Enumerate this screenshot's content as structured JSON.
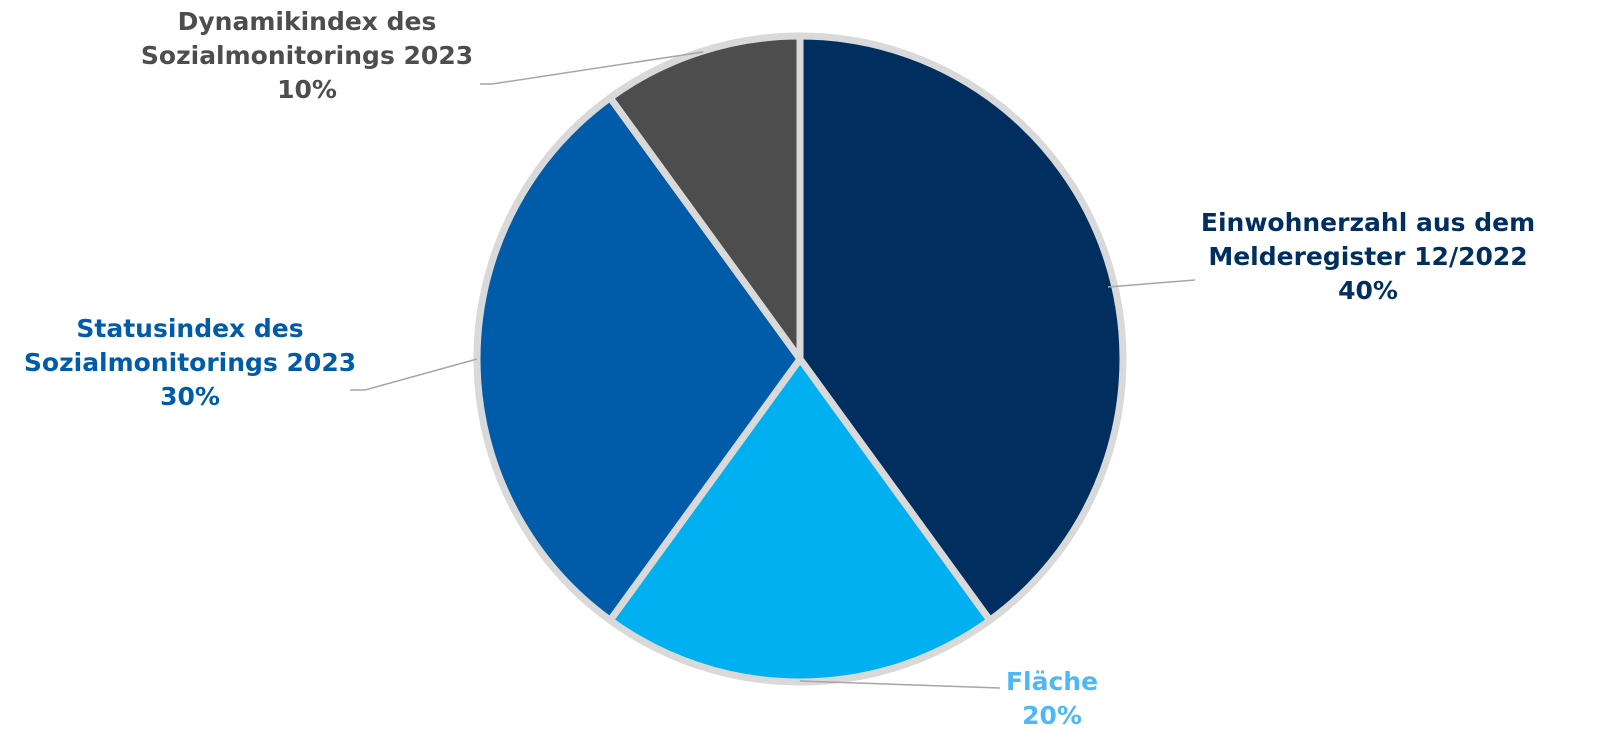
{
  "chart_data": {
    "type": "pie",
    "start_angle_deg": 0,
    "direction": "clockwise",
    "slices": [
      {
        "label_lines": [
          "Einwohnerzahl aus dem",
          "Melderegister 12/2022"
        ],
        "value": 40,
        "value_label": "40%",
        "color": "#002f5f",
        "label_color": "#002f5f"
      },
      {
        "label_lines": [
          "Fläche"
        ],
        "value": 20,
        "value_label": "20%",
        "color": "#00b0f0",
        "label_color": "#4db8f5"
      },
      {
        "label_lines": [
          "Statusindex des",
          "Sozialmonitorings 2023"
        ],
        "value": 30,
        "value_label": "30%",
        "color": "#005ca9",
        "label_color": "#005ca9"
      },
      {
        "label_lines": [
          "Dynamikindex des",
          "Sozialmonitorings 2023"
        ],
        "value": 10,
        "value_label": "10%",
        "color": "#4d4d4d",
        "label_color": "#4d4d4d"
      }
    ],
    "slice_border_color": "#d9d9d9",
    "leader_line_color": "#a6a6a6"
  }
}
